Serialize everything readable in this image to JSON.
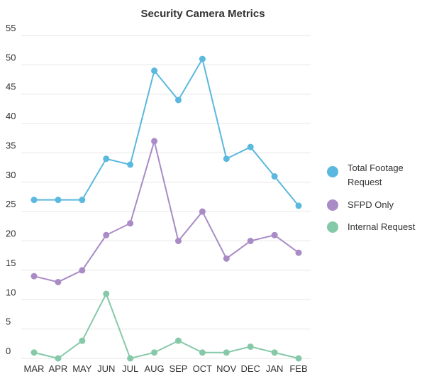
{
  "chart_data": {
    "type": "line",
    "title": "Security Camera Metrics",
    "xlabel": "",
    "ylabel": "",
    "categories": [
      "MAR",
      "APR",
      "MAY",
      "JUN",
      "JUL",
      "AUG",
      "SEP",
      "OCT",
      "NOV",
      "DEC",
      "JAN",
      "FEB"
    ],
    "ylim": [
      0,
      55
    ],
    "yticks": [
      0,
      5,
      10,
      15,
      20,
      25,
      30,
      35,
      40,
      45,
      50,
      55
    ],
    "grid": true,
    "legend_position": "right",
    "series": [
      {
        "name": "Total Footage Request",
        "name_lines": [
          "Total Footage",
          "Request"
        ],
        "color": "#5bb8de",
        "values": [
          27,
          27,
          27,
          34,
          33,
          49,
          44,
          51,
          34,
          36,
          31,
          26
        ]
      },
      {
        "name": "SFPD Only",
        "name_lines": [
          "SFPD Only"
        ],
        "color": "#a98bc6",
        "values": [
          14,
          13,
          15,
          21,
          23,
          37,
          20,
          25,
          17,
          20,
          21,
          18
        ]
      },
      {
        "name": "Internal Request",
        "name_lines": [
          "Internal Request"
        ],
        "color": "#86c9a8",
        "values": [
          1,
          0,
          3,
          11,
          0,
          1,
          3,
          1,
          1,
          2,
          1,
          0
        ]
      }
    ]
  }
}
